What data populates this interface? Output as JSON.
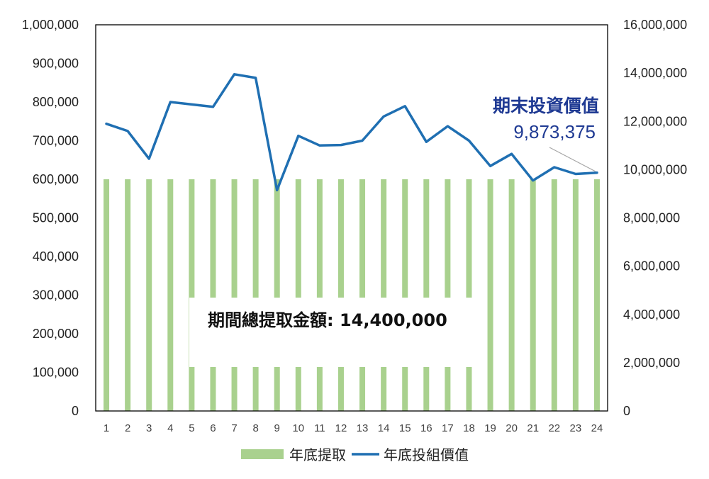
{
  "chart_data": {
    "type": "bar",
    "categories": [
      "1",
      "2",
      "3",
      "4",
      "5",
      "6",
      "7",
      "8",
      "9",
      "10",
      "11",
      "12",
      "13",
      "14",
      "15",
      "16",
      "17",
      "18",
      "19",
      "20",
      "21",
      "22",
      "23",
      "24"
    ],
    "series": [
      {
        "name": "年底提取",
        "type": "bar",
        "axis": "left",
        "color": "#a9d18e",
        "values": [
          600000,
          600000,
          600000,
          600000,
          600000,
          600000,
          600000,
          600000,
          600000,
          600000,
          600000,
          600000,
          600000,
          600000,
          600000,
          600000,
          600000,
          600000,
          600000,
          600000,
          600000,
          600000,
          600000,
          600000
        ]
      },
      {
        "name": "年底投組價值",
        "type": "line",
        "axis": "right",
        "color": "#1f6fb2",
        "values": [
          11900000,
          11600000,
          10450000,
          12800000,
          12700000,
          12600000,
          13950000,
          13800000,
          9150000,
          11400000,
          11000000,
          11020000,
          11200000,
          12200000,
          12630000,
          11150000,
          11800000,
          11200000,
          10150000,
          10650000,
          9550000,
          10100000,
          9820000,
          9873375
        ]
      }
    ],
    "y_left": {
      "ylim": [
        0,
        1000000
      ],
      "ticks": [
        "0",
        "100,000",
        "200,000",
        "300,000",
        "400,000",
        "500,000",
        "600,000",
        "700,000",
        "800,000",
        "900,000",
        "1,000,000"
      ]
    },
    "y_right": {
      "ylim": [
        0,
        16000000
      ],
      "ticks": [
        "0",
        "2,000,000",
        "4,000,000",
        "6,000,000",
        "8,000,000",
        "10,000,000",
        "12,000,000",
        "14,000,000",
        "16,000,000"
      ]
    },
    "grid": false,
    "legend_position": "bottom-center",
    "annotations": {
      "end_value_title": "期末投資價值",
      "end_value": "9,873,375",
      "total_withdrawal": "期間總提取金額: 14,400,000"
    }
  }
}
